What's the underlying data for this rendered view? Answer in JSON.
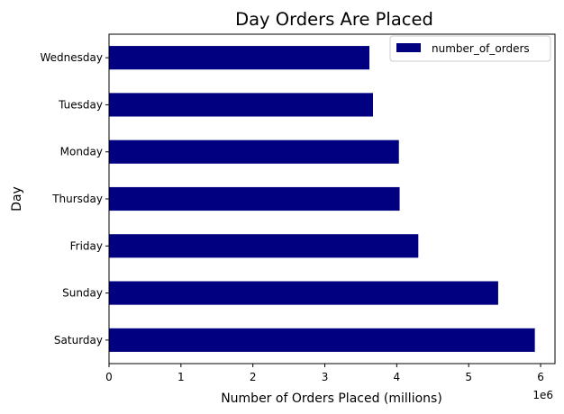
{
  "chart_data": {
    "type": "bar",
    "orientation": "horizontal",
    "title": "Day Orders Are Placed",
    "xlabel": "Number of Orders Placed (millions)",
    "ylabel": "Day",
    "x_scale_label": "1e6",
    "categories": [
      "Wednesday",
      "Tuesday",
      "Monday",
      "Thursday",
      "Friday",
      "Sunday",
      "Saturday"
    ],
    "series": [
      {
        "name": "number_of_orders",
        "color": "#000080",
        "values": [
          3620000,
          3670000,
          4030000,
          4040000,
          4300000,
          5410000,
          5920000
        ]
      }
    ],
    "xlim": [
      0,
      6200000
    ],
    "xticks": [
      0,
      1000000,
      2000000,
      3000000,
      4000000,
      5000000,
      6000000
    ],
    "xtick_labels": [
      "0",
      "1",
      "2",
      "3",
      "4",
      "5",
      "6"
    ],
    "grid": false,
    "legend_position": "top-right"
  }
}
